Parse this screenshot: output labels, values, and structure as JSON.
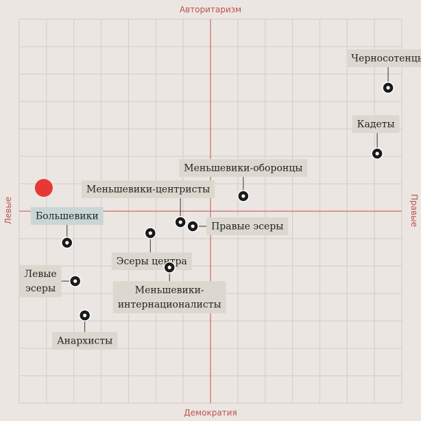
{
  "chart_data": {
    "type": "scatter",
    "axes": {
      "top": "Авторитаризм",
      "bottom": "Демократия",
      "left": "Левые",
      "right": "Правые"
    },
    "xlim": [
      -7,
      7
    ],
    "ylim": [
      -7,
      7
    ],
    "grid": true,
    "user_marker": {
      "x": -6.1,
      "y": 0.85,
      "color": "#e53935"
    },
    "colors": {
      "background": "#ebe6e1",
      "grid": "#d2ccc6",
      "axis": "#c0504d",
      "label_bg": "#ddd8cf",
      "highlight_bg": "#c9d6d6",
      "point": "#1a1a1a"
    },
    "points": [
      {
        "id": "chernosotentsy",
        "label": "Черносотенцы",
        "x": 6.5,
        "y": 4.5
      },
      {
        "id": "kadety",
        "label": "Кадеты",
        "x": 6.1,
        "y": 2.1
      },
      {
        "id": "mensheviki-oborontsy",
        "label": "Меньшевики-оборонцы",
        "x": 1.2,
        "y": 0.55
      },
      {
        "id": "mensheviki-tsentristy",
        "label": "Меньшевики-центристы",
        "x": -1.1,
        "y": -0.4
      },
      {
        "id": "pravye-esery",
        "label": "Правые эсеры",
        "x": -0.65,
        "y": -0.55
      },
      {
        "id": "bolsheviki",
        "label": "Большевики",
        "x": -5.25,
        "y": -1.15,
        "highlight": true
      },
      {
        "id": "esery-tsentra",
        "label": "Эсеры центра",
        "x": -2.2,
        "y": -0.8
      },
      {
        "id": "mensheviki-internatsionalisty",
        "label": "Меньшевики-\nинтернационалисты",
        "x": -1.5,
        "y": -2.05
      },
      {
        "id": "levye-esery",
        "label": "Левые\nэсеры",
        "x": -4.95,
        "y": -2.55
      },
      {
        "id": "anarkhisty",
        "label": "Анархисты",
        "x": -4.6,
        "y": -3.8
      }
    ]
  }
}
